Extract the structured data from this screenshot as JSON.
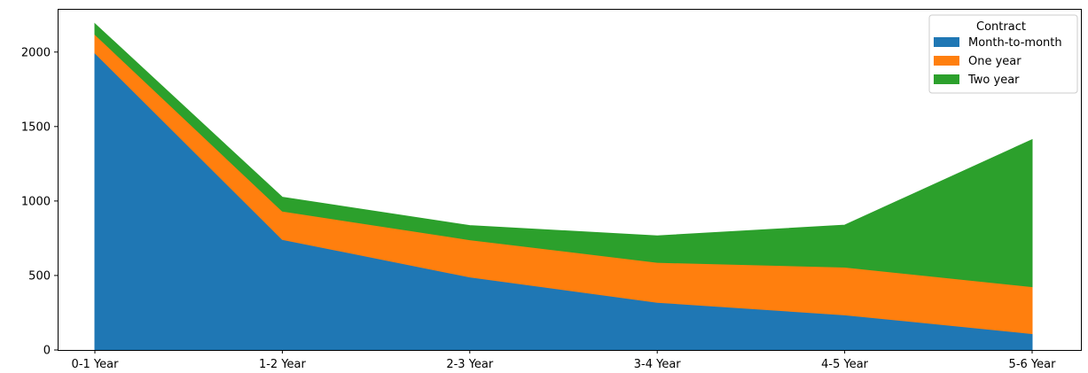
{
  "chart_data": {
    "type": "area",
    "stacked": true,
    "categories": [
      "0-1 Year",
      "1-2 Year",
      "2-3 Year",
      "3-4 Year",
      "4-5 Year",
      "5-6 Year"
    ],
    "series": [
      {
        "name": "Month-to-month",
        "color": "#1f77b4",
        "values": [
          1994,
          742,
          490,
          320,
          236,
          110
        ]
      },
      {
        "name": "One year",
        "color": "#ff7f0e",
        "values": [
          125,
          190,
          250,
          268,
          320,
          315
        ]
      },
      {
        "name": "Two year",
        "color": "#2ca02c",
        "values": [
          71,
          93,
          95,
          178,
          282,
          987
        ]
      }
    ],
    "ylim": [
      0,
      2290
    ],
    "yticks": [
      0,
      500,
      1000,
      1500,
      2000
    ],
    "xlabel": "",
    "ylabel": "",
    "title": "",
    "grid": false,
    "legend": {
      "title": "Contract",
      "position": "top-right"
    }
  }
}
